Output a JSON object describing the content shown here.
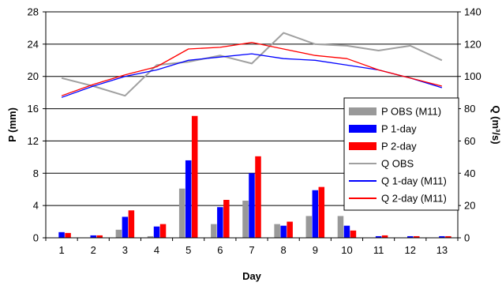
{
  "chart_data": {
    "type": "bar",
    "title": "",
    "xlabel": "Day",
    "ylabel_left": "P (mm)",
    "ylabel_right": "Q (m³/s)",
    "ylim_left": [
      0,
      28
    ],
    "ylim_right": [
      0,
      140
    ],
    "yticks_left": [
      0,
      4,
      8,
      12,
      16,
      20,
      24,
      28
    ],
    "yticks_right": [
      0,
      20,
      40,
      60,
      80,
      100,
      120,
      140
    ],
    "grid": "horizontal",
    "legend_position": "right",
    "categories": [
      "1",
      "2",
      "3",
      "4",
      "5",
      "6",
      "7",
      "8",
      "9",
      "10",
      "11",
      "12",
      "13"
    ],
    "bar_series": [
      {
        "name": "P OBS (M11)",
        "axis": "left",
        "color": "#999999",
        "values": [
          0.0,
          0.0,
          1.0,
          0.2,
          6.1,
          1.7,
          4.6,
          1.7,
          2.7,
          2.7,
          0.0,
          0.0,
          0.0
        ]
      },
      {
        "name": "P 1-day",
        "axis": "left",
        "color": "#0000ff",
        "values": [
          0.7,
          0.3,
          2.6,
          1.4,
          9.6,
          3.8,
          8.0,
          1.5,
          5.9,
          1.5,
          0.2,
          0.2,
          0.2
        ]
      },
      {
        "name": "P 2-day",
        "axis": "left",
        "color": "#ff0000",
        "values": [
          0.6,
          0.3,
          3.4,
          1.7,
          15.1,
          4.7,
          10.1,
          2.0,
          6.3,
          0.9,
          0.3,
          0.2,
          0.2
        ]
      }
    ],
    "line_series": [
      {
        "name": "Q OBS",
        "axis": "right",
        "color": "#a0a0a0",
        "width": 2,
        "values": [
          99,
          94,
          88,
          107,
          109,
          113,
          108,
          127,
          120,
          119,
          116,
          119,
          110
        ]
      },
      {
        "name": "Q 1-day (M11)",
        "axis": "right",
        "color": "#0000ff",
        "width": 1.3,
        "values": [
          87,
          94,
          100,
          104,
          110,
          112,
          114,
          111,
          110,
          107,
          104,
          99,
          93
        ]
      },
      {
        "name": "Q 2-day (M11)",
        "axis": "right",
        "color": "#ff0000",
        "width": 1.3,
        "values": [
          88,
          95,
          101,
          106,
          117,
          118,
          121,
          117,
          113,
          111,
          104,
          99,
          94
        ]
      }
    ],
    "legend": [
      {
        "label": "P OBS (M11)",
        "kind": "bar",
        "color": "#999999"
      },
      {
        "label": "P 1-day",
        "kind": "bar",
        "color": "#0000ff"
      },
      {
        "label": "P 2-day",
        "kind": "bar",
        "color": "#ff0000"
      },
      {
        "label": "Q OBS",
        "kind": "line",
        "color": "#a0a0a0"
      },
      {
        "label": "Q 1-day (M11)",
        "kind": "line",
        "color": "#0000ff"
      },
      {
        "label": "Q 2-day (M11)",
        "kind": "line",
        "color": "#ff0000"
      }
    ]
  }
}
